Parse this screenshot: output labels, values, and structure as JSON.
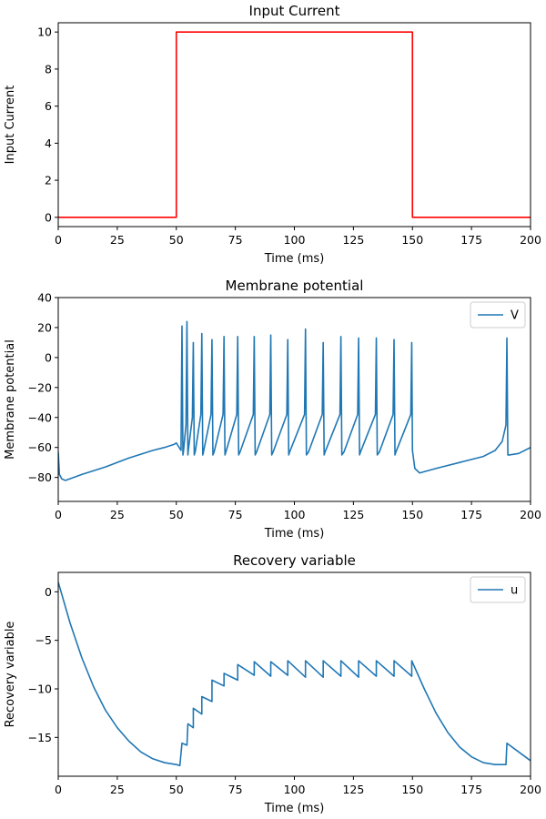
{
  "chart_data": [
    {
      "type": "line",
      "title": "Input Current",
      "xlabel": "Time (ms)",
      "ylabel": "Input Current",
      "xlim": [
        0,
        200
      ],
      "ylim": [
        -0.5,
        10.5
      ],
      "xticks": [
        0,
        25,
        50,
        75,
        100,
        125,
        150,
        175,
        200
      ],
      "yticks": [
        0,
        2,
        4,
        6,
        8,
        10
      ],
      "grid": false,
      "legend": null,
      "series": [
        {
          "color": "#ff0000",
          "x": [
            0,
            50,
            50,
            150,
            150,
            200
          ],
          "y": [
            0,
            0,
            10,
            10,
            0,
            0
          ]
        }
      ]
    },
    {
      "type": "line",
      "title": "Membrane potential",
      "xlabel": "Time (ms)",
      "ylabel": "Membrane potential",
      "xlim": [
        0,
        200
      ],
      "ylim": [
        -96,
        40
      ],
      "xticks": [
        0,
        25,
        50,
        75,
        100,
        125,
        150,
        175,
        200
      ],
      "yticks": [
        -80,
        -60,
        -40,
        -20,
        0,
        20,
        40
      ],
      "grid": false,
      "legend": "top-right",
      "series": [
        {
          "name": "V",
          "color": "#1f77b4",
          "x": [
            0,
            0.5,
            1.5,
            3,
            10,
            20,
            30,
            40,
            45,
            49,
            50,
            52,
            52.4,
            52.8,
            53,
            54.1,
            54.5,
            54.9,
            55,
            56.8,
            57.2,
            57.6,
            58,
            60.4,
            60.8,
            61.2,
            61.5,
            64.7,
            65.1,
            65.5,
            66,
            69.8,
            70.2,
            70.6,
            71,
            75.6,
            76,
            76.4,
            77,
            82.6,
            83,
            83.4,
            84,
            89.6,
            90,
            90.4,
            91,
            96.8,
            97.2,
            97.6,
            98,
            104.3,
            104.7,
            105.1,
            106,
            111.8,
            112.2,
            112.6,
            113,
            119.3,
            119.7,
            120.1,
            121,
            126.8,
            127.2,
            127.6,
            128,
            134.3,
            134.7,
            135.1,
            136,
            141.8,
            142.2,
            142.6,
            143,
            149.3,
            149.7,
            150,
            151,
            153,
            160,
            170,
            180,
            185,
            188,
            189.6,
            190,
            190.4,
            191,
            195,
            200
          ],
          "y": [
            -63,
            -78,
            -81,
            -82,
            -78,
            -73,
            -67,
            -62,
            -60,
            -58,
            -57,
            -62,
            21,
            -65,
            -63,
            -45,
            24,
            -65,
            -63,
            -40,
            10,
            -65,
            -63,
            -38,
            16,
            -65,
            -63,
            -38,
            12,
            -65,
            -63,
            -38,
            14,
            -65,
            -63,
            -38,
            14,
            -65,
            -63,
            -38,
            14,
            -65,
            -63,
            -38,
            15,
            -65,
            -63,
            -38,
            12,
            -65,
            -63,
            -38,
            19,
            -65,
            -63,
            -38,
            10,
            -65,
            -63,
            -38,
            14,
            -65,
            -63,
            -38,
            13,
            -65,
            -63,
            -38,
            13,
            -65,
            -63,
            -38,
            12,
            -65,
            -63,
            -38,
            10,
            -62,
            -74,
            -77,
            -74,
            -70,
            -66,
            -62,
            -56,
            -45,
            13,
            -65,
            -65,
            -64,
            -60
          ]
        }
      ]
    },
    {
      "type": "line",
      "title": "Recovery variable",
      "xlabel": "Time (ms)",
      "ylabel": "Recovery variable",
      "xlim": [
        0,
        200
      ],
      "ylim": [
        -19,
        2
      ],
      "xticks": [
        0,
        25,
        50,
        75,
        100,
        125,
        150,
        175,
        200
      ],
      "yticks": [
        -15,
        -10,
        -5,
        0
      ],
      "grid": false,
      "legend": "top-right",
      "series": [
        {
          "name": "u",
          "color": "#1f77b4",
          "x": [
            0,
            5,
            10,
            15,
            20,
            25,
            30,
            35,
            40,
            45,
            50,
            51.5,
            52.4,
            52.4,
            54.5,
            54.9,
            54.9,
            57.2,
            57.2,
            57.2,
            60.8,
            60.8,
            60.8,
            65.1,
            65.1,
            65.1,
            70.2,
            70.2,
            70.2,
            76,
            76,
            76,
            83,
            83,
            83,
            90,
            90,
            90,
            97.2,
            97.2,
            97.2,
            104.7,
            104.7,
            104.7,
            112.2,
            112.2,
            112.2,
            119.7,
            119.7,
            119.7,
            127.2,
            127.2,
            127.2,
            134.7,
            134.7,
            134.7,
            142.2,
            142.2,
            142.2,
            149.7,
            149.7,
            149.7,
            155,
            160,
            165,
            170,
            175,
            180,
            185,
            189.6,
            190,
            190,
            195,
            200
          ],
          "y": [
            1,
            -3.2,
            -6.8,
            -9.8,
            -12.2,
            -14.0,
            -15.4,
            -16.5,
            -17.2,
            -17.6,
            -17.8,
            -17.9,
            -15.6,
            -15.6,
            -15.8,
            -13.6,
            -13.6,
            -14.0,
            -12.0,
            -12.0,
            -12.6,
            -10.8,
            -10.8,
            -11.3,
            -9.1,
            -9.1,
            -9.7,
            -8.4,
            -8.4,
            -9.1,
            -7.5,
            -7.5,
            -8.6,
            -7.2,
            -7.2,
            -8.7,
            -7.2,
            -7.2,
            -8.6,
            -7.1,
            -7.1,
            -8.8,
            -7.1,
            -7.1,
            -8.8,
            -7.1,
            -7.1,
            -8.7,
            -7.1,
            -7.1,
            -8.8,
            -7.1,
            -7.1,
            -8.7,
            -7.1,
            -7.1,
            -8.7,
            -7.1,
            -7.1,
            -8.7,
            -7.1,
            -7.1,
            -10.0,
            -12.5,
            -14.5,
            -16.0,
            -17.0,
            -17.6,
            -17.8,
            -17.8,
            -15.6,
            -15.6,
            -16.5,
            -17.4
          ]
        }
      ]
    }
  ]
}
